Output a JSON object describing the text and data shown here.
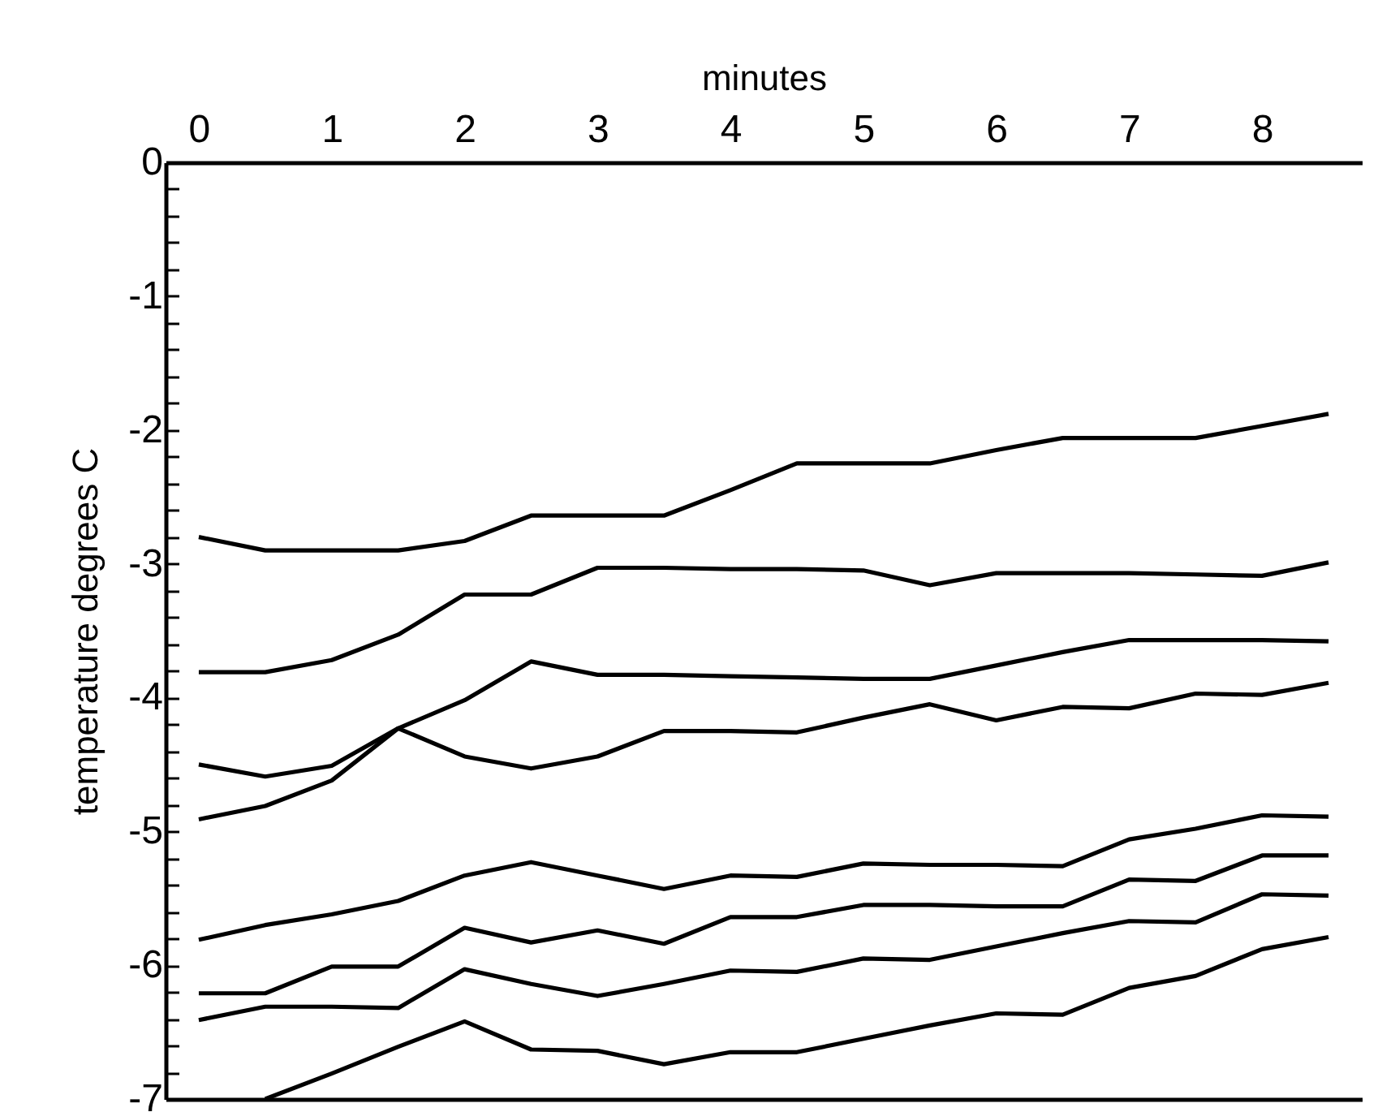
{
  "chart_data": {
    "type": "line",
    "xlabel": "minutes",
    "ylabel": "temperature degrees C",
    "x": [
      0,
      0.5,
      1,
      1.5,
      2,
      2.5,
      3,
      3.5,
      4,
      4.5,
      5,
      5.5,
      6,
      6.5,
      7,
      7.5,
      8,
      8.5
    ],
    "series": [
      {
        "color": "#000000",
        "values": [
          -2.8,
          -2.9,
          -2.9,
          -2.9,
          -2.83,
          -2.64,
          -2.64,
          -2.64,
          -2.45,
          -2.25,
          -2.25,
          -2.25,
          -2.15,
          -2.06,
          -2.06,
          -2.06,
          -1.97,
          -1.88
        ]
      },
      {
        "color": "#000000",
        "values": [
          -3.81,
          -3.81,
          -3.72,
          -3.53,
          -3.23,
          -3.23,
          -3.03,
          -3.03,
          -3.04,
          -3.04,
          -3.05,
          -3.16,
          -3.07,
          -3.07,
          -3.07,
          -3.08,
          -3.09,
          -2.99
        ]
      },
      {
        "color": "#000000",
        "values": [
          -4.91,
          -4.81,
          -4.62,
          -4.23,
          -4.02,
          -3.73,
          -3.83,
          -3.83,
          -3.84,
          -3.85,
          -3.86,
          -3.86,
          -3.76,
          -3.66,
          -3.57,
          -3.57,
          -3.57,
          -3.58
        ]
      },
      {
        "color": "#000000",
        "values": [
          -4.5,
          -4.59,
          -4.51,
          -4.23,
          -4.44,
          -4.53,
          -4.44,
          -4.25,
          -4.25,
          -4.26,
          -4.15,
          -4.05,
          -4.17,
          -4.07,
          -4.08,
          -3.97,
          -3.98,
          -3.89
        ]
      },
      {
        "color": "#000000",
        "values": [
          -5.81,
          -5.7,
          -5.62,
          -5.52,
          -5.33,
          -5.23,
          -5.33,
          -5.43,
          -5.33,
          -5.34,
          -5.24,
          -5.25,
          -5.25,
          -5.26,
          -5.06,
          -4.98,
          -4.88,
          -4.89
        ]
      },
      {
        "color": "#000000",
        "values": [
          -6.21,
          -6.21,
          -6.01,
          -6.01,
          -5.72,
          -5.83,
          -5.74,
          -5.84,
          -5.64,
          -5.64,
          -5.55,
          -5.55,
          -5.56,
          -5.56,
          -5.36,
          -5.37,
          -5.18,
          -5.18
        ]
      },
      {
        "color": "#000000",
        "values": [
          -6.41,
          -6.31,
          -6.31,
          -6.32,
          -6.03,
          -6.14,
          -6.23,
          -6.14,
          -6.04,
          -6.05,
          -5.95,
          -5.96,
          -5.86,
          -5.76,
          -5.67,
          -5.68,
          -5.47,
          -5.48
        ]
      },
      {
        "color": "#000000",
        "values": [
          null,
          -7,
          -6.81,
          -6.61,
          -6.42,
          -6.63,
          -6.64,
          -6.74,
          -6.65,
          -6.65,
          -6.55,
          -6.45,
          -6.36,
          -6.37,
          -6.17,
          -6.08,
          -5.88,
          -5.79
        ]
      }
    ],
    "xlim": [
      -0.25,
      8.75
    ],
    "xticks": [
      0,
      1,
      2,
      3,
      4,
      5,
      6,
      7,
      8
    ],
    "ylim": [
      -7,
      0
    ],
    "yticks": [
      0,
      {
        "value": -0.2,
        "label": null
      },
      {
        "value": -0.4,
        "label": null
      },
      {
        "value": -0.6,
        "label": null
      },
      {
        "value": -0.8,
        "label": null
      },
      -1,
      {
        "value": -1.2,
        "label": null
      },
      {
        "value": -1.4,
        "label": null
      },
      {
        "value": -1.6,
        "label": null
      },
      {
        "value": -1.8,
        "label": null
      },
      -2,
      {
        "value": -2.2,
        "label": null
      },
      {
        "value": -2.4,
        "label": null
      },
      {
        "value": -2.6,
        "label": null
      },
      {
        "value": -2.8,
        "label": null
      },
      -3,
      {
        "value": -3.2,
        "label": null
      },
      {
        "value": -3.4,
        "label": null
      },
      {
        "value": -3.6,
        "label": null
      },
      {
        "value": -3.8,
        "label": null
      },
      -4,
      {
        "value": -4.2,
        "label": null
      },
      {
        "value": -4.4,
        "label": null
      },
      {
        "value": -4.6,
        "label": null
      },
      {
        "value": -4.8,
        "label": null
      },
      -5,
      {
        "value": -5.2,
        "label": null
      },
      {
        "value": -5.4,
        "label": null
      },
      {
        "value": -5.6,
        "label": null
      },
      {
        "value": -5.8,
        "label": null
      },
      -6,
      {
        "value": -6.2,
        "label": null
      },
      {
        "value": -6.4,
        "label": null
      },
      {
        "value": -6.6,
        "label": null
      },
      {
        "value": -6.8,
        "label": null
      },
      -7
    ],
    "grid": false,
    "legend": false,
    "line_style": "solid"
  }
}
